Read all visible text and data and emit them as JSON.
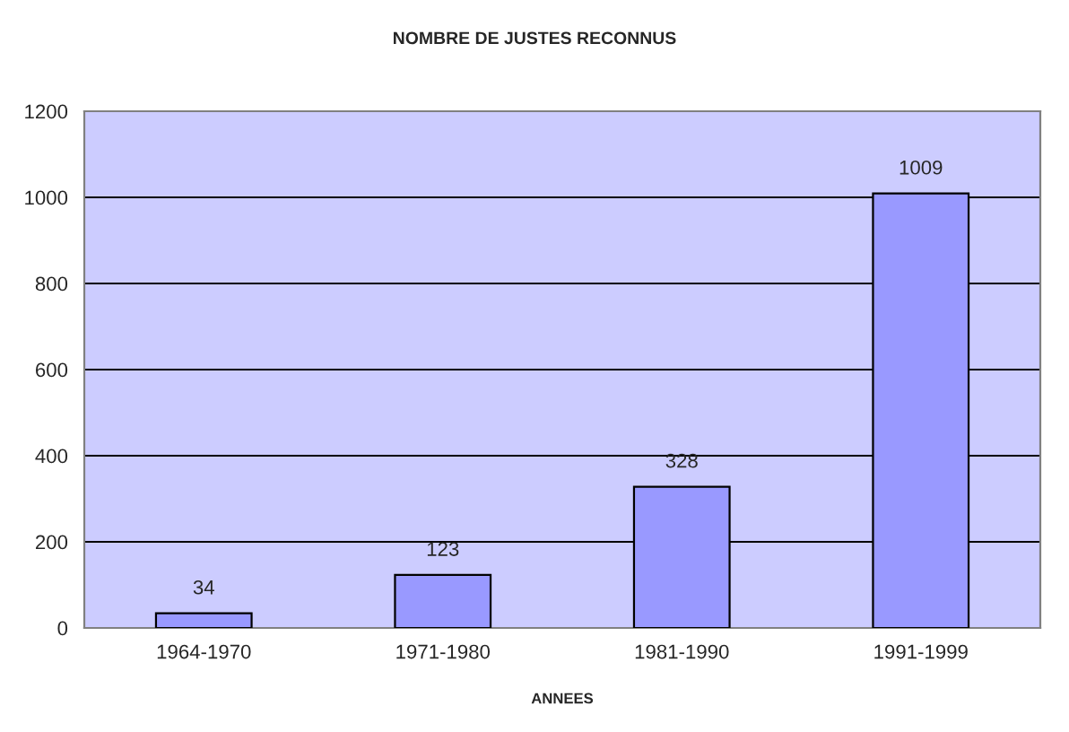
{
  "chart_data": {
    "type": "bar",
    "title": "NOMBRE DE JUSTES RECONNUS",
    "xlabel": "ANNEES",
    "categories": [
      "1964-1970",
      "1971-1980",
      "1981-1990",
      "1991-1999"
    ],
    "values": [
      34,
      123,
      328,
      1009
    ],
    "color": "#9999ff",
    "ylim": [
      0,
      1200
    ],
    "yticks": [
      0,
      200,
      400,
      600,
      800,
      1000,
      1200
    ],
    "grid": "y",
    "data_labels": true
  }
}
